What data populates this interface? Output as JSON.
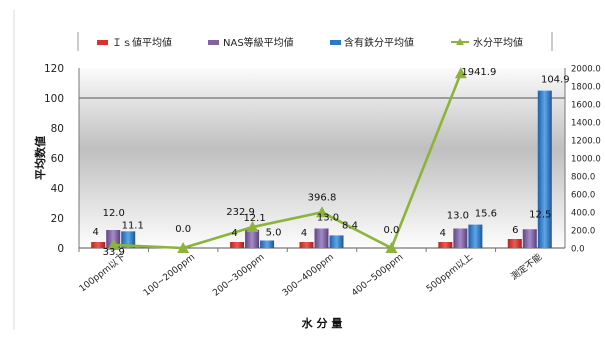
{
  "chart_data": {
    "type": "bar",
    "title": "",
    "xlabel": "水 分 量",
    "ylabel": "平均数値",
    "y2label": "",
    "ylim": [
      0,
      120
    ],
    "y2lim": [
      0,
      2000
    ],
    "yticks": [
      "0",
      "20",
      "40",
      "60",
      "80",
      "100",
      "120"
    ],
    "y2ticks": [
      "0.0",
      "200.0",
      "400.0",
      "600.0",
      "800.0",
      "1000.0",
      "1200.0",
      "1400.0",
      "1600.0",
      "1800.0",
      "2000.0"
    ],
    "grid": "horizontal, y = 100 only",
    "legend_position": "top",
    "categories": [
      "100ppm以下",
      "100~200ppm",
      "200~300ppm",
      "300~400ppm",
      "400~500ppm",
      "500ppm以上",
      "測定不能"
    ],
    "series": [
      {
        "name": "Ｉｓ値平均値",
        "type": "bar",
        "axis": "left",
        "color": "#d9322e",
        "values": [
          4,
          null,
          4,
          4,
          null,
          4,
          6
        ],
        "labels": [
          "4",
          "",
          "4",
          "4",
          "",
          "4",
          "6"
        ]
      },
      {
        "name": "NAS等級平均値",
        "type": "bar",
        "axis": "left",
        "color": "#8064a2",
        "values": [
          12.0,
          null,
          12.1,
          13.0,
          null,
          13.0,
          12.5
        ],
        "labels": [
          "12.0",
          "",
          "12.1",
          "13.0",
          "",
          "13.0",
          "12.5"
        ]
      },
      {
        "name": "含有鉄分平均値",
        "type": "bar",
        "axis": "left",
        "color": "#2a79c8",
        "values": [
          11.1,
          null,
          5.0,
          8.4,
          null,
          15.6,
          104.9
        ],
        "labels": [
          "11.1",
          "",
          "5.0",
          "8.4",
          "",
          "15.6",
          "104.9"
        ]
      },
      {
        "name": "水分平均値",
        "type": "line",
        "axis": "right",
        "color": "#8cb43c",
        "values": [
          33.9,
          0.0,
          232.9,
          396.8,
          0.0,
          1941.9,
          null
        ],
        "labels": [
          "33.9",
          "0.0",
          "232.9",
          "396.8",
          "0.0",
          "1941.9",
          ""
        ]
      }
    ]
  }
}
